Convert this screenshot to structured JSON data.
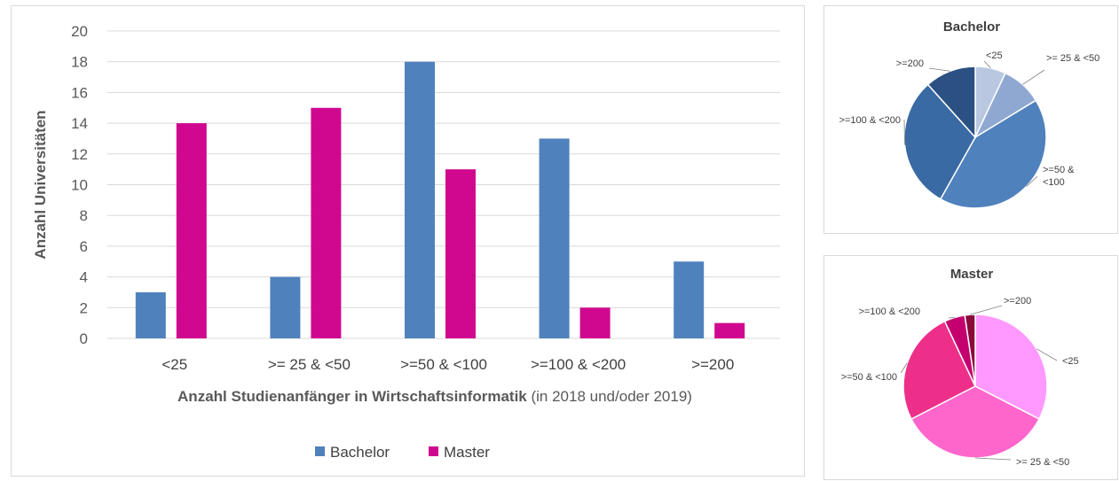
{
  "chart_data": [
    {
      "type": "bar",
      "categories": [
        "<25",
        ">= 25 & <50",
        ">=50 & <100",
        ">=100 & <200",
        ">=200"
      ],
      "series": [
        {
          "name": "Bachelor",
          "values": [
            3,
            4,
            18,
            13,
            5
          ],
          "color": "#4f81bd"
        },
        {
          "name": "Master",
          "values": [
            14,
            15,
            11,
            2,
            1
          ],
          "color": "#d0088f"
        }
      ],
      "ylabel": "Anzahl Universitäten",
      "xlabel_bold": "Anzahl Studienanfänger in Wirtschaftsinformatik",
      "xlabel_normal": " (in 2018 und/oder 2019)",
      "ylim": [
        0,
        20
      ],
      "yticks": [
        0,
        2,
        4,
        6,
        8,
        10,
        12,
        14,
        16,
        18,
        20
      ],
      "grid": true,
      "legend_position": "bottom"
    },
    {
      "type": "pie",
      "title": "Bachelor",
      "labels": [
        "<25",
        ">= 25 & <50",
        ">=50 &\n<100",
        ">=100 & <200",
        ">=200"
      ],
      "values": [
        3,
        4,
        18,
        13,
        5
      ],
      "colors": [
        "#b9c7e0",
        "#8fa8d2",
        "#4f81bd",
        "#3a6aa3",
        "#2b5183"
      ]
    },
    {
      "type": "pie",
      "title": "Master",
      "labels": [
        "<25",
        ">= 25 & <50",
        ">=50 & <100",
        ">=100 & <200",
        ">=200"
      ],
      "values": [
        14,
        15,
        11,
        2,
        1
      ],
      "colors": [
        "#ff99ff",
        "#ff66cc",
        "#ee2f8a",
        "#c4006f",
        "#8a0a3c"
      ]
    }
  ]
}
